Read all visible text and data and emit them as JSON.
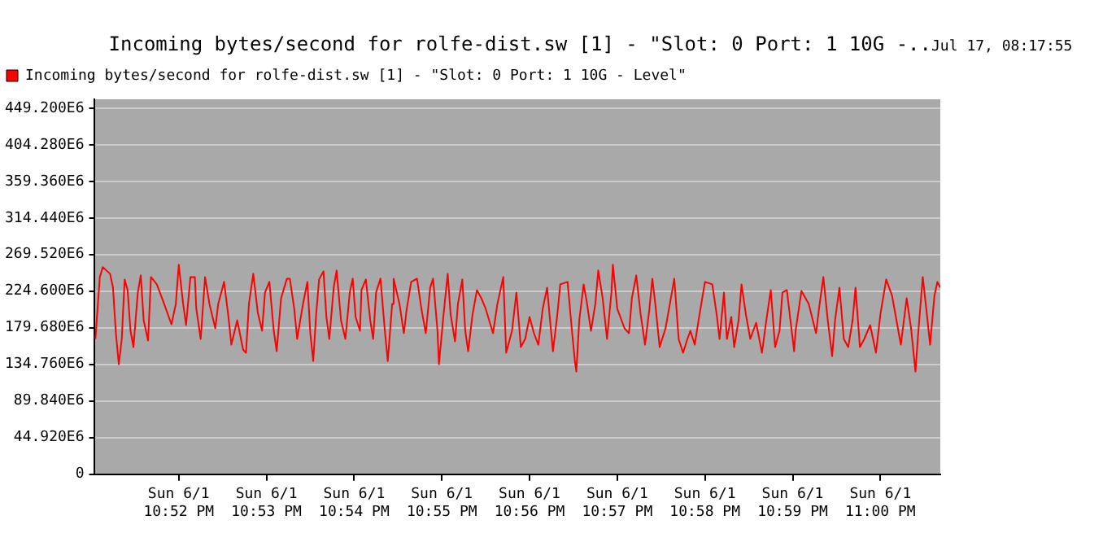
{
  "chart_data": {
    "type": "line",
    "title": "Incoming bytes/second for rolfe-dist.sw [1] - \"Slot: 0 Port: 1 10G -..",
    "subtitle": "Jul 17, 08:17:55",
    "x": [
      "--06-01T22:51:03",
      "--06-01T22:51:06",
      "--06-01T22:51:08",
      "--06-01T22:51:13",
      "--06-01T22:51:15",
      "--06-01T22:51:17",
      "--06-01T22:51:19",
      "--06-01T22:51:21",
      "--06-01T22:51:23",
      "--06-01T22:51:25",
      "--06-01T22:51:27",
      "--06-01T22:51:29",
      "--06-01T22:51:32",
      "--06-01T22:51:34",
      "--06-01T22:51:36",
      "--06-01T22:51:39",
      "--06-01T22:51:41",
      "--06-01T22:51:45",
      "--06-01T22:51:50",
      "--06-01T22:51:55",
      "--06-01T22:51:58",
      "--06-01T22:52:00",
      "--06-01T22:52:03",
      "--06-01T22:52:05",
      "--06-01T22:52:08",
      "--06-01T22:52:11",
      "--06-01T22:52:12",
      "--06-01T22:52:15",
      "--06-01T22:52:18",
      "--06-01T22:52:21",
      "--06-01T22:52:25",
      "--06-01T22:52:27",
      "--06-01T22:52:31",
      "--06-01T22:52:34",
      "--06-01T22:52:36",
      "--06-01T22:52:40",
      "--06-01T22:52:44",
      "--06-01T22:52:46",
      "--06-01T22:52:48",
      "--06-01T22:52:51",
      "--06-01T22:52:54",
      "--06-01T22:52:57",
      "--06-01T22:52:59",
      "--06-01T22:53:02",
      "--06-01T22:53:05",
      "--06-01T22:53:07",
      "--06-01T22:53:10",
      "--06-01T22:53:14",
      "--06-01T22:53:16",
      "--06-01T22:53:19",
      "--06-01T22:53:21",
      "--06-01T22:53:25",
      "--06-01T22:53:28",
      "--06-01T22:53:30",
      "--06-01T22:53:32",
      "--06-01T22:53:34",
      "--06-01T22:53:36",
      "--06-01T22:53:39",
      "--06-01T22:53:41",
      "--06-01T22:53:43",
      "--06-01T22:53:46",
      "--06-01T22:53:48",
      "--06-01T22:53:51",
      "--06-01T22:53:54",
      "--06-01T22:53:57",
      "--06-01T22:53:59",
      "--06-01T22:54:01",
      "--06-01T22:54:04",
      "--06-01T22:54:05",
      "--06-01T22:54:08",
      "--06-01T22:54:11",
      "--06-01T22:54:13",
      "--06-01T22:54:15",
      "--06-01T22:54:18",
      "--06-01T22:54:21",
      "--06-01T22:54:23",
      "--06-01T22:54:26",
      "--06-01T22:54:27",
      "--06-01T22:54:31",
      "--06-01T22:54:34",
      "--06-01T22:54:36",
      "--06-01T22:54:39",
      "--06-01T22:54:43",
      "--06-01T22:54:46",
      "--06-01T22:54:49",
      "--06-01T22:54:52",
      "--06-01T22:54:54",
      "--06-01T22:54:57",
      "--06-01T22:54:58",
      "--06-01T22:55:01",
      "--06-01T22:55:04",
      "--06-01T22:55:06",
      "--06-01T22:55:09",
      "--06-01T22:55:11",
      "--06-01T22:55:14",
      "--06-01T22:55:16",
      "--06-01T22:55:18",
      "--06-01T22:55:21",
      "--06-01T22:55:24",
      "--06-01T22:55:27",
      "--06-01T22:55:30",
      "--06-01T22:55:35",
      "--06-01T22:55:38",
      "--06-01T22:55:42",
      "--06-01T22:55:44",
      "--06-01T22:55:48",
      "--06-01T22:55:51",
      "--06-01T22:55:53",
      "--06-01T22:55:54",
      "--06-01T22:55:57",
      "--06-01T22:56:00",
      "--06-01T22:56:03",
      "--06-01T22:56:06",
      "--06-01T22:56:09",
      "--06-01T22:56:12",
      "--06-01T22:56:14",
      "--06-01T22:56:16",
      "--06-01T22:56:19",
      "--06-01T22:56:21",
      "--06-01T22:56:26",
      "--06-01T22:56:29",
      "--06-01T22:56:31",
      "--06-01T22:56:32",
      "--06-01T22:56:34",
      "--06-01T22:56:37",
      "--06-01T22:56:39",
      "--06-01T22:56:42",
      "--06-01T22:56:45",
      "--06-01T22:56:47",
      "--06-01T22:56:50",
      "--06-01T22:56:53",
      "--06-01T22:56:56",
      "--06-01T22:56:57",
      "--06-01T22:57:00",
      "--06-01T22:57:05",
      "--06-01T22:57:08",
      "--06-01T22:57:10",
      "--06-01T22:57:13",
      "--06-01T22:57:16",
      "--06-01T22:57:19",
      "--06-01T22:57:22",
      "--06-01T22:57:24",
      "--06-01T22:57:26",
      "--06-01T22:57:29",
      "--06-01T22:57:33",
      "--06-01T22:57:36",
      "--06-01T22:57:39",
      "--06-01T22:57:42",
      "--06-01T22:57:45",
      "--06-01T22:57:48",
      "--06-01T22:57:50",
      "--06-01T22:57:53",
      "--06-01T22:57:56",
      "--06-01T22:58:00",
      "--06-01T22:58:05",
      "--06-01T22:58:08",
      "--06-01T22:58:10",
      "--06-01T22:58:13",
      "--06-01T22:58:15",
      "--06-01T22:58:18",
      "--06-01T22:58:20",
      "--06-01T22:58:23",
      "--06-01T22:58:25",
      "--06-01T22:58:28",
      "--06-01T22:58:31",
      "--06-01T22:58:35",
      "--06-01T22:58:39",
      "--06-01T22:58:42",
      "--06-01T22:58:45",
      "--06-01T22:58:48",
      "--06-01T22:58:51",
      "--06-01T22:58:53",
      "--06-01T22:58:56",
      "--06-01T22:59:01",
      "--06-01T22:59:02",
      "--06-01T22:59:06",
      "--06-01T22:59:11",
      "--06-01T22:59:16",
      "--06-01T22:59:18",
      "--06-01T22:59:21",
      "--06-01T22:59:24",
      "--06-01T22:59:27",
      "--06-01T22:59:29",
      "--06-01T22:59:32",
      "--06-01T22:59:35",
      "--06-01T22:59:38",
      "--06-01T22:59:41",
      "--06-01T22:59:43",
      "--06-01T22:59:46",
      "--06-01T22:59:49",
      "--06-01T22:59:53",
      "--06-01T22:59:57",
      "--06-01T23:00:00",
      "--06-01T23:00:04",
      "--06-01T23:00:08",
      "--06-01T23:00:11",
      "--06-01T23:00:14",
      "--06-01T23:00:18",
      "--06-01T23:00:21",
      "--06-01T23:00:24",
      "--06-01T23:00:26",
      "--06-01T23:00:29",
      "--06-01T23:00:32",
      "--06-01T23:00:34",
      "--06-01T23:00:37",
      "--06-01T23:00:39",
      "--06-01T23:00:41"
    ],
    "series": [
      {
        "name": "Incoming bytes/second for rolfe-dist.sw [1] - \"Slot: 0 Port: 1 10G - Level\"",
        "color": "#ff0000",
        "values": [
          166000000.0,
          242000000.0,
          254000000.0,
          246000000.0,
          229000000.0,
          173000000.0,
          135000000.0,
          166000000.0,
          239000000.0,
          226000000.0,
          176000000.0,
          156000000.0,
          223000000.0,
          244000000.0,
          189000000.0,
          164000000.0,
          242000000.0,
          233000000.0,
          209000000.0,
          184000000.0,
          209000000.0,
          257000000.0,
          209000000.0,
          183000000.0,
          242000000.0,
          242000000.0,
          203000000.0,
          166000000.0,
          242000000.0,
          209000000.0,
          179000000.0,
          209000000.0,
          236000000.0,
          193000000.0,
          159000000.0,
          189000000.0,
          153000000.0,
          149000000.0,
          209000000.0,
          246000000.0,
          199000000.0,
          176000000.0,
          223000000.0,
          236000000.0,
          176000000.0,
          151000000.0,
          216000000.0,
          240000000.0,
          240000000.0,
          203000000.0,
          166000000.0,
          209000000.0,
          236000000.0,
          173000000.0,
          139000000.0,
          196000000.0,
          239000000.0,
          249000000.0,
          193000000.0,
          166000000.0,
          229000000.0,
          250000000.0,
          189000000.0,
          166000000.0,
          223000000.0,
          240000000.0,
          193000000.0,
          176000000.0,
          226000000.0,
          239000000.0,
          189000000.0,
          166000000.0,
          223000000.0,
          240000000.0,
          176000000.0,
          139000000.0,
          209000000.0,
          240000000.0,
          209000000.0,
          173000000.0,
          203000000.0,
          236000000.0,
          240000000.0,
          203000000.0,
          173000000.0,
          229000000.0,
          240000000.0,
          176000000.0,
          135000000.0,
          193000000.0,
          246000000.0,
          196000000.0,
          163000000.0,
          209000000.0,
          239000000.0,
          176000000.0,
          151000000.0,
          196000000.0,
          226000000.0,
          216000000.0,
          203000000.0,
          173000000.0,
          209000000.0,
          242000000.0,
          149000000.0,
          176000000.0,
          223000000.0,
          179000000.0,
          156000000.0,
          166000000.0,
          193000000.0,
          173000000.0,
          159000000.0,
          203000000.0,
          229000000.0,
          189000000.0,
          151000000.0,
          196000000.0,
          233000000.0,
          236000000.0,
          176000000.0,
          139000000.0,
          126000000.0,
          189000000.0,
          233000000.0,
          213000000.0,
          176000000.0,
          209000000.0,
          250000000.0,
          216000000.0,
          166000000.0,
          223000000.0,
          257000000.0,
          203000000.0,
          179000000.0,
          173000000.0,
          216000000.0,
          244000000.0,
          196000000.0,
          159000000.0,
          203000000.0,
          240000000.0,
          209000000.0,
          156000000.0,
          179000000.0,
          209000000.0,
          240000000.0,
          166000000.0,
          149000000.0,
          166000000.0,
          176000000.0,
          159000000.0,
          193000000.0,
          236000000.0,
          233000000.0,
          196000000.0,
          166000000.0,
          223000000.0,
          166000000.0,
          193000000.0,
          156000000.0,
          189000000.0,
          233000000.0,
          196000000.0,
          166000000.0,
          186000000.0,
          149000000.0,
          189000000.0,
          226000000.0,
          156000000.0,
          176000000.0,
          223000000.0,
          226000000.0,
          151000000.0,
          176000000.0,
          225000000.0,
          209000000.0,
          173000000.0,
          203000000.0,
          242000000.0,
          189000000.0,
          145000000.0,
          189000000.0,
          229000000.0,
          166000000.0,
          156000000.0,
          189000000.0,
          229000000.0,
          156000000.0,
          166000000.0,
          183000000.0,
          149000000.0,
          196000000.0,
          239000000.0,
          219000000.0,
          189000000.0,
          159000000.0,
          216000000.0,
          179000000.0,
          126000000.0,
          176000000.0,
          242000000.0,
          193000000.0,
          159000000.0,
          219000000.0,
          236000000.0,
          229000000.0
        ]
      }
    ],
    "xlim": [
      "--06-01T22:51:02",
      "--06-01T23:00:41"
    ],
    "xticks": [
      {
        "value": "--06-01T22:52",
        "label": "Sun 6/1\n10:52 PM"
      },
      {
        "value": "--06-01T22:53",
        "label": "Sun 6/1\n10:53 PM"
      },
      {
        "value": "--06-01T22:54",
        "label": "Sun 6/1\n10:54 PM"
      },
      {
        "value": "--06-01T22:55",
        "label": "Sun 6/1\n10:55 PM"
      },
      {
        "value": "--06-01T22:56",
        "label": "Sun 6/1\n10:56 PM"
      },
      {
        "value": "--06-01T22:57",
        "label": "Sun 6/1\n10:57 PM"
      },
      {
        "value": "--06-01T22:58",
        "label": "Sun 6/1\n10:58 PM"
      },
      {
        "value": "--06-01T22:59",
        "label": "Sun 6/1\n10:59 PM"
      },
      {
        "value": "--06-01T23:00",
        "label": "Sun 6/1\n11:00 PM"
      }
    ],
    "ylim": [
      0,
      460000000.0
    ],
    "yticks": [
      0,
      {
        "value": 44920000.0,
        "label": "44.920E6"
      },
      {
        "value": 89840000.0,
        "label": "89.840E6"
      },
      {
        "value": 134760000.0,
        "label": "134.760E6"
      },
      {
        "value": 179680000.0,
        "label": "179.680E6"
      },
      {
        "value": 224600000.0,
        "label": "224.600E6"
      },
      {
        "value": 269520000.0,
        "label": "269.520E6"
      },
      {
        "value": 314440000.0,
        "label": "314.440E6"
      },
      {
        "value": 359360000.0,
        "label": "359.360E6"
      },
      {
        "value": 404280000.0,
        "label": "404.280E6"
      },
      {
        "value": 449200000.0,
        "label": "449.200E6"
      }
    ],
    "grid": "y",
    "legend": "top left",
    "marker": "none",
    "line_style": "solid"
  }
}
